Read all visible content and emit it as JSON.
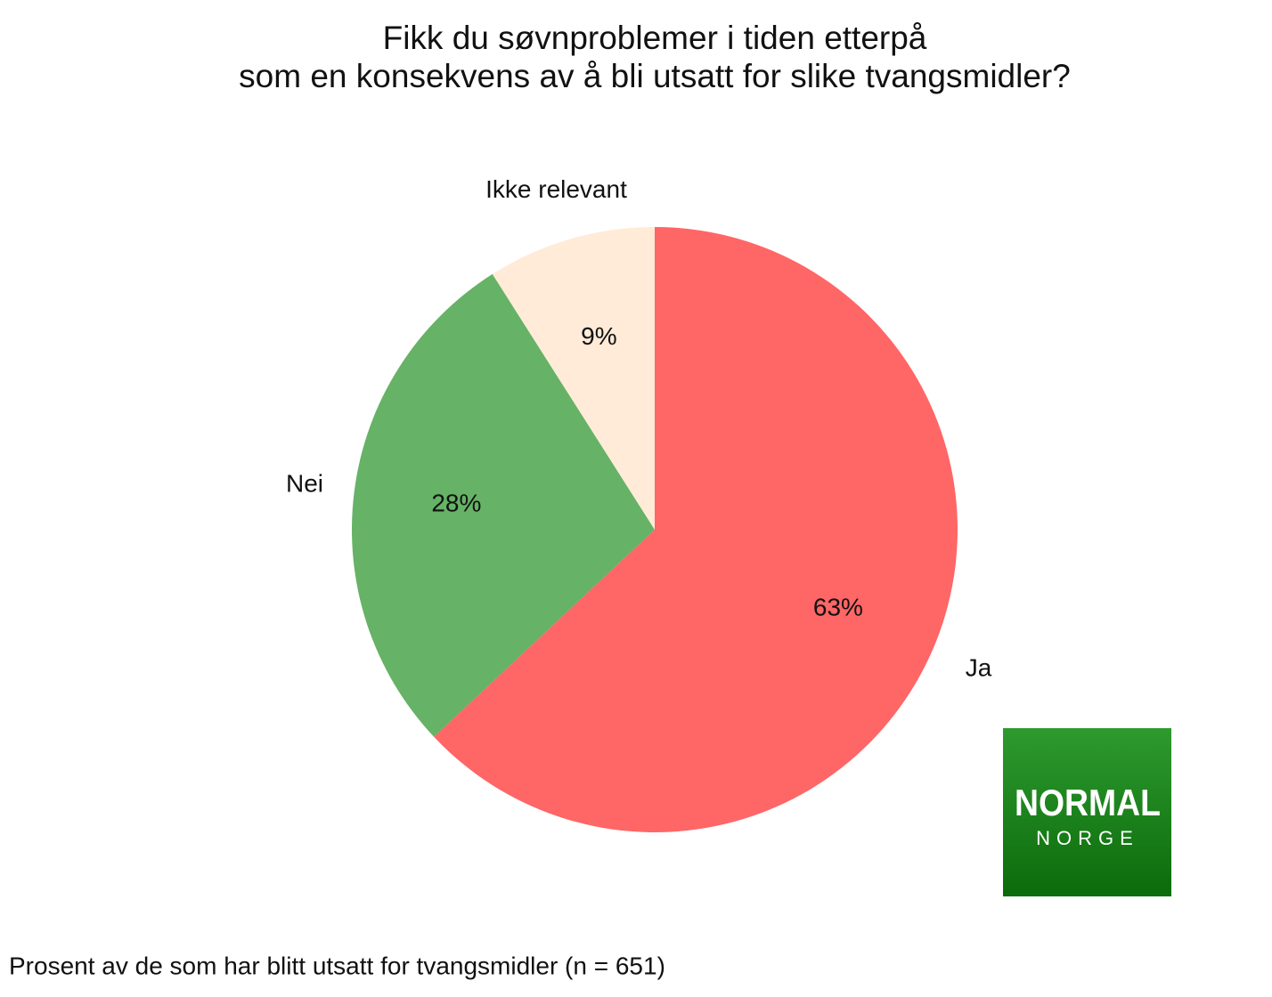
{
  "chart_data": {
    "type": "pie",
    "title": [
      "Fikk du søvnproblemer i tiden etterpå",
      "som en konsekvens av å bli utsatt for slike tvangsmidler?"
    ],
    "categories": [
      "Ja",
      "Nei",
      "Ikke relevant"
    ],
    "values": [
      63,
      28,
      9
    ],
    "value_labels": [
      "63%",
      "28%",
      "9%"
    ],
    "colors": [
      "#ff6666",
      "#66b266",
      "#ffebd7"
    ],
    "caption": "Prosent av de som har blitt utsatt for tvangsmidler (n = 651)"
  },
  "logo": {
    "name": "NORMAL",
    "subtitle": "NORGE"
  }
}
